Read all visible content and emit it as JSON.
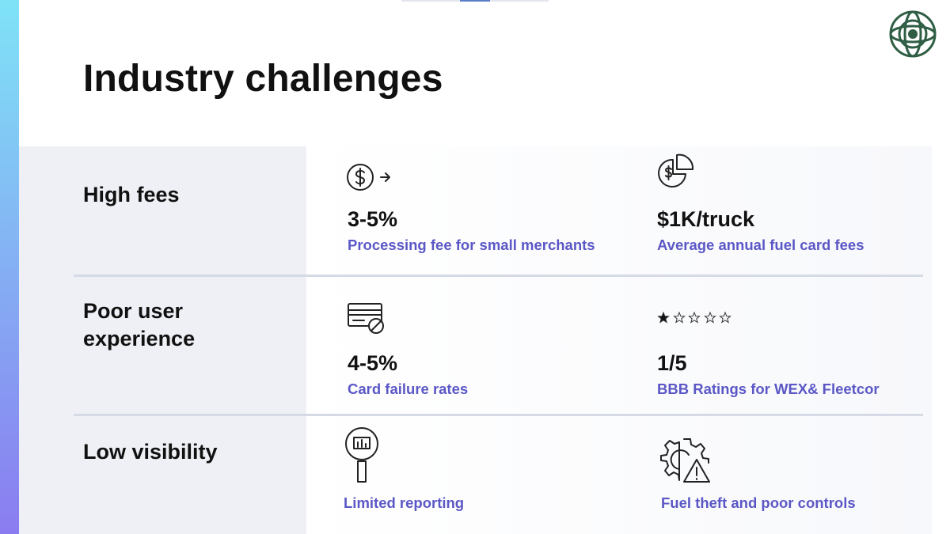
{
  "title": "Industry challenges",
  "rows": [
    {
      "label": "High fees",
      "items": [
        {
          "stat": "3-5%",
          "description": "Processing fee for small merchants"
        },
        {
          "stat": "$1K/truck",
          "description": "Average annual fuel card fees"
        }
      ]
    },
    {
      "label": "Poor user experience",
      "items": [
        {
          "stat": "4-5%",
          "description": "Card failure rates"
        },
        {
          "stat": "1/5",
          "description": "BBB Ratings for WEX& Fleetcor"
        }
      ]
    },
    {
      "label": "Low visibility",
      "items": [
        {
          "description": "Limited reporting"
        },
        {
          "description": "Fuel theft and poor controls"
        }
      ]
    }
  ]
}
